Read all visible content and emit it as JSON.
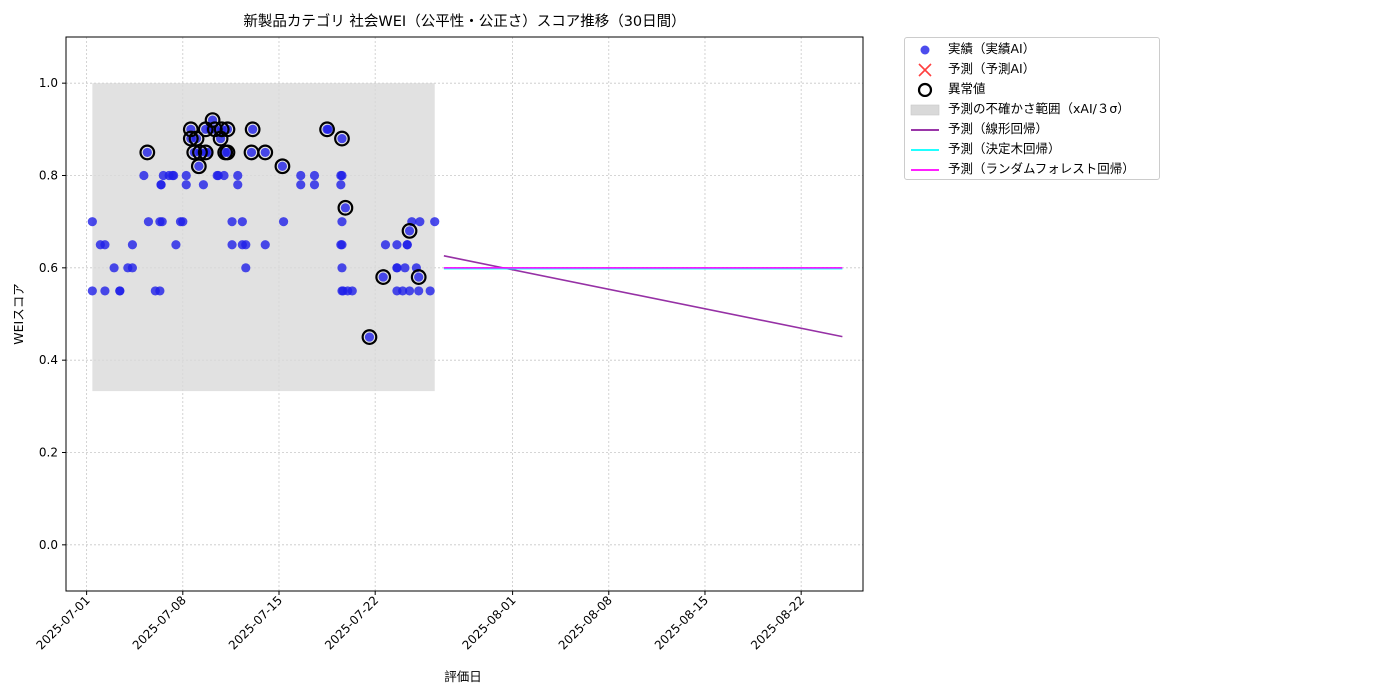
{
  "chart_data": {
    "type": "scatter",
    "title": "新製品カテゴリ 社会WEI（公平性・公正さ）スコア推移（30日間）",
    "xlabel": "評価日",
    "ylabel": "WEIスコア",
    "xlim": [
      "2025-06-29T12:00",
      "2025-08-26T12:00"
    ],
    "ylim": [
      -0.1,
      1.1
    ],
    "yticks": [
      0.0,
      0.2,
      0.4,
      0.6,
      0.8,
      1.0
    ],
    "ytick_labels": [
      "0.0",
      "0.2",
      "0.4",
      "0.6",
      "0.8",
      "1.0"
    ],
    "xticks": [
      "2025-07-01",
      "2025-07-08",
      "2025-07-15",
      "2025-07-22",
      "2025-08-01",
      "2025-08-08",
      "2025-08-15",
      "2025-08-22"
    ],
    "grid": true,
    "legend_position": "outside-top-right",
    "colors": {
      "actual": "#1f1fe8",
      "predicted": "#ff0000",
      "anomaly": "#000000",
      "band": "#d9d9d9",
      "linear": "#8b1a9b",
      "tree": "#00ffff",
      "forest": "#ff00ff"
    },
    "uncertainty_band": {
      "x_start": "2025-07-01T10:00",
      "x_end": "2025-07-26T08:00",
      "y_low": 0.333,
      "y_high": 1.0
    },
    "series": [
      {
        "name": "実績（実績AI）",
        "kind": "scatter",
        "points": [
          [
            "2025-07-01T10:00",
            0.55
          ],
          [
            "2025-07-01T10:00",
            0.7
          ],
          [
            "2025-07-02T00:00",
            0.65
          ],
          [
            "2025-07-02T08:00",
            0.65
          ],
          [
            "2025-07-02T08:00",
            0.55
          ],
          [
            "2025-07-03T00:00",
            0.6
          ],
          [
            "2025-07-03T10:00",
            0.55
          ],
          [
            "2025-07-03T10:00",
            0.55
          ],
          [
            "2025-07-04T00:00",
            0.6
          ],
          [
            "2025-07-04T08:00",
            0.6
          ],
          [
            "2025-07-04T08:00",
            0.65
          ],
          [
            "2025-07-05T04:00",
            0.8
          ],
          [
            "2025-07-05T10:00",
            0.85
          ],
          [
            "2025-07-05T12:00",
            0.7
          ],
          [
            "2025-07-06T00:00",
            0.55
          ],
          [
            "2025-07-06T08:00",
            0.55
          ],
          [
            "2025-07-06T08:00",
            0.7
          ],
          [
            "2025-07-06T10:00",
            0.78
          ],
          [
            "2025-07-06T10:00",
            0.78
          ],
          [
            "2025-07-06T12:00",
            0.7
          ],
          [
            "2025-07-06T14:00",
            0.8
          ],
          [
            "2025-07-07T00:00",
            0.8
          ],
          [
            "2025-07-07T06:00",
            0.8
          ],
          [
            "2025-07-07T08:00",
            0.8
          ],
          [
            "2025-07-07T12:00",
            0.65
          ],
          [
            "2025-07-07T20:00",
            0.7
          ],
          [
            "2025-07-08T00:00",
            0.7
          ],
          [
            "2025-07-08T06:00",
            0.78
          ],
          [
            "2025-07-08T06:00",
            0.8
          ],
          [
            "2025-07-08T14:00",
            0.9
          ],
          [
            "2025-07-08T14:00",
            0.88
          ],
          [
            "2025-07-08T20:00",
            0.85
          ],
          [
            "2025-07-09T00:00",
            0.88
          ],
          [
            "2025-07-09T04:00",
            0.82
          ],
          [
            "2025-07-09T06:00",
            0.85
          ],
          [
            "2025-07-09T12:00",
            0.78
          ],
          [
            "2025-07-09T16:00",
            0.85
          ],
          [
            "2025-07-09T16:00",
            0.9
          ],
          [
            "2025-07-09T20:00",
            0.85
          ],
          [
            "2025-07-10T00:00",
            0.9
          ],
          [
            "2025-07-10T04:00",
            0.92
          ],
          [
            "2025-07-10T08:00",
            0.9
          ],
          [
            "2025-07-10T12:00",
            0.8
          ],
          [
            "2025-07-10T14:00",
            0.8
          ],
          [
            "2025-07-10T18:00",
            0.88
          ],
          [
            "2025-07-10T20:00",
            0.9
          ],
          [
            "2025-07-11T00:00",
            0.8
          ],
          [
            "2025-07-11T02:00",
            0.85
          ],
          [
            "2025-07-11T06:00",
            0.9
          ],
          [
            "2025-07-11T06:00",
            0.85
          ],
          [
            "2025-07-11T14:00",
            0.7
          ],
          [
            "2025-07-11T14:00",
            0.65
          ],
          [
            "2025-07-12T00:00",
            0.78
          ],
          [
            "2025-07-12T00:00",
            0.8
          ],
          [
            "2025-07-12T08:00",
            0.65
          ],
          [
            "2025-07-12T08:00",
            0.7
          ],
          [
            "2025-07-12T14:00",
            0.6
          ],
          [
            "2025-07-12T14:00",
            0.65
          ],
          [
            "2025-07-13T00:00",
            0.85
          ],
          [
            "2025-07-13T02:00",
            0.9
          ],
          [
            "2025-07-14T00:00",
            0.65
          ],
          [
            "2025-07-14T00:00",
            0.85
          ],
          [
            "2025-07-15T06:00",
            0.82
          ],
          [
            "2025-07-15T08:00",
            0.7
          ],
          [
            "2025-07-16T14:00",
            0.78
          ],
          [
            "2025-07-16T14:00",
            0.8
          ],
          [
            "2025-07-17T14:00",
            0.78
          ],
          [
            "2025-07-17T14:00",
            0.8
          ],
          [
            "2025-07-18T12:00",
            0.9
          ],
          [
            "2025-07-18T14:00",
            0.9
          ],
          [
            "2025-07-19T12:00",
            0.8
          ],
          [
            "2025-07-19T12:00",
            0.78
          ],
          [
            "2025-07-19T12:00",
            0.65
          ],
          [
            "2025-07-19T14:00",
            0.88
          ],
          [
            "2025-07-19T14:00",
            0.8
          ],
          [
            "2025-07-19T14:00",
            0.7
          ],
          [
            "2025-07-19T14:00",
            0.65
          ],
          [
            "2025-07-19T14:00",
            0.6
          ],
          [
            "2025-07-19T14:00",
            0.55
          ],
          [
            "2025-07-19T16:00",
            0.55
          ],
          [
            "2025-07-19T20:00",
            0.73
          ],
          [
            "2025-07-20T00:00",
            0.55
          ],
          [
            "2025-07-20T08:00",
            0.55
          ],
          [
            "2025-07-21T14:00",
            0.45
          ],
          [
            "2025-07-22T14:00",
            0.58
          ],
          [
            "2025-07-22T18:00",
            0.65
          ],
          [
            "2025-07-23T14:00",
            0.65
          ],
          [
            "2025-07-23T14:00",
            0.6
          ],
          [
            "2025-07-23T14:00",
            0.6
          ],
          [
            "2025-07-23T14:00",
            0.55
          ],
          [
            "2025-07-24T00:00",
            0.55
          ],
          [
            "2025-07-24T04:00",
            0.6
          ],
          [
            "2025-07-24T08:00",
            0.65
          ],
          [
            "2025-07-24T08:00",
            0.65
          ],
          [
            "2025-07-24T12:00",
            0.55
          ],
          [
            "2025-07-24T12:00",
            0.68
          ],
          [
            "2025-07-24T16:00",
            0.7
          ],
          [
            "2025-07-25T00:00",
            0.6
          ],
          [
            "2025-07-25T04:00",
            0.58
          ],
          [
            "2025-07-25T04:00",
            0.55
          ],
          [
            "2025-07-25T06:00",
            0.7
          ],
          [
            "2025-07-26T00:00",
            0.55
          ],
          [
            "2025-07-26T08:00",
            0.7
          ]
        ]
      },
      {
        "name": "予測（予測AI）",
        "kind": "scatter",
        "points": []
      },
      {
        "name": "異常値",
        "kind": "anomaly",
        "points": [
          [
            "2025-07-05T10:00",
            0.85
          ],
          [
            "2025-07-08T14:00",
            0.9
          ],
          [
            "2025-07-08T14:00",
            0.88
          ],
          [
            "2025-07-08T20:00",
            0.85
          ],
          [
            "2025-07-09T00:00",
            0.88
          ],
          [
            "2025-07-09T04:00",
            0.82
          ],
          [
            "2025-07-09T06:00",
            0.85
          ],
          [
            "2025-07-09T16:00",
            0.85
          ],
          [
            "2025-07-09T16:00",
            0.9
          ],
          [
            "2025-07-10T04:00",
            0.92
          ],
          [
            "2025-07-10T08:00",
            0.9
          ],
          [
            "2025-07-10T18:00",
            0.88
          ],
          [
            "2025-07-10T20:00",
            0.9
          ],
          [
            "2025-07-11T02:00",
            0.85
          ],
          [
            "2025-07-11T06:00",
            0.9
          ],
          [
            "2025-07-11T06:00",
            0.85
          ],
          [
            "2025-07-13T00:00",
            0.85
          ],
          [
            "2025-07-13T02:00",
            0.9
          ],
          [
            "2025-07-14T00:00",
            0.85
          ],
          [
            "2025-07-15T06:00",
            0.82
          ],
          [
            "2025-07-18T12:00",
            0.9
          ],
          [
            "2025-07-19T14:00",
            0.88
          ],
          [
            "2025-07-19T20:00",
            0.73
          ],
          [
            "2025-07-21T14:00",
            0.45
          ],
          [
            "2025-07-22T14:00",
            0.58
          ],
          [
            "2025-07-24T12:00",
            0.68
          ],
          [
            "2025-07-25T04:00",
            0.58
          ]
        ]
      },
      {
        "name": "予測の不確かさ範囲（xAI/３σ）",
        "kind": "band"
      },
      {
        "name": "予測（線形回帰）",
        "kind": "line",
        "points": [
          [
            "2025-07-27T00:00",
            0.626
          ],
          [
            "2025-08-25T00:00",
            0.451
          ]
        ]
      },
      {
        "name": "予測（決定木回帰）",
        "kind": "line",
        "points": [
          [
            "2025-07-27T00:00",
            0.598
          ],
          [
            "2025-08-25T00:00",
            0.598
          ]
        ]
      },
      {
        "name": "予測（ランダムフォレスト回帰）",
        "kind": "line",
        "points": [
          [
            "2025-07-27T00:00",
            0.6
          ],
          [
            "2025-08-25T00:00",
            0.6
          ]
        ]
      }
    ]
  }
}
